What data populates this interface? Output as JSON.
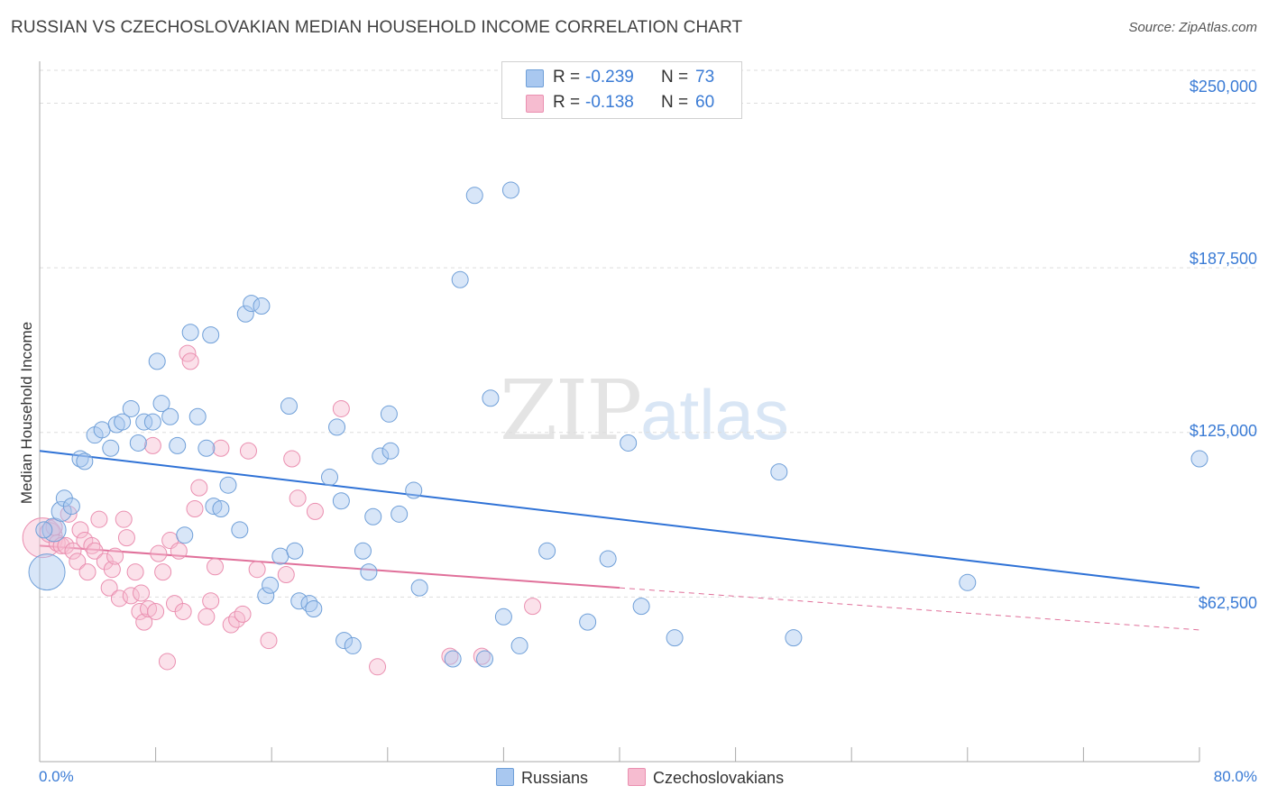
{
  "header": {
    "title": "RUSSIAN VS CZECHOSLOVAKIAN MEDIAN HOUSEHOLD INCOME CORRELATION CHART",
    "source": "Source: ZipAtlas.com"
  },
  "watermark": {
    "zip": "ZIP",
    "atlas": "atlas"
  },
  "legend": {
    "russians": {
      "r_label": "R =",
      "r_value": "-0.239",
      "n_label": "N =",
      "n_value": "73"
    },
    "czechoslovakians": {
      "r_label": "R =",
      "r_value": "-0.138",
      "n_label": "N =",
      "n_value": "60"
    }
  },
  "bottom_legend": {
    "russians": "Russians",
    "czechoslovakians": "Czechoslovakians"
  },
  "axes": {
    "ylabel": "Median Household Income",
    "x_min_label": "0.0%",
    "x_max_label": "80.0%",
    "y_ticks": [
      "$250,000",
      "$187,500",
      "$125,000",
      "$62,500"
    ]
  },
  "colors": {
    "russians_fill": "#a9c8f0",
    "russians_stroke": "#6f9fd8",
    "russians_line": "#2f72d6",
    "czech_fill": "#f6bcd0",
    "czech_stroke": "#ea8fb0",
    "czech_line": "#e0709a",
    "axis_text": "#3a7bd5",
    "grid": "#dddddd"
  },
  "chart_data": {
    "type": "scatter",
    "title": "RUSSIAN VS CZECHOSLOVAKIAN MEDIAN HOUSEHOLD INCOME CORRELATION CHART",
    "xlabel": "",
    "ylabel": "Median Household Income",
    "xlim": [
      0,
      80
    ],
    "ylim": [
      0,
      262500
    ],
    "y_ticks": [
      62500,
      125000,
      187500,
      250000
    ],
    "series": [
      {
        "name": "Russians",
        "r": -0.239,
        "n": 73,
        "trend": {
          "x": [
            0,
            80
          ],
          "y": [
            118000,
            66000
          ]
        },
        "points": [
          [
            0.5,
            72000,
            20
          ],
          [
            1.0,
            88000,
            13
          ],
          [
            1.5,
            95000,
            11
          ],
          [
            1.7,
            100000,
            9
          ],
          [
            2.2,
            97000,
            9
          ],
          [
            2.8,
            115000,
            9
          ],
          [
            3.1,
            114000,
            9
          ],
          [
            3.8,
            124000,
            9
          ],
          [
            4.3,
            126000,
            9
          ],
          [
            4.9,
            119000,
            9
          ],
          [
            5.3,
            128000,
            9
          ],
          [
            5.7,
            129000,
            9
          ],
          [
            6.3,
            134000,
            9
          ],
          [
            6.8,
            121000,
            9
          ],
          [
            7.2,
            129000,
            9
          ],
          [
            7.8,
            129000,
            9
          ],
          [
            8.1,
            152000,
            9
          ],
          [
            8.4,
            136000,
            9
          ],
          [
            9.0,
            131000,
            9
          ],
          [
            9.5,
            120000,
            9
          ],
          [
            10.0,
            86000,
            9
          ],
          [
            10.4,
            163000,
            9
          ],
          [
            10.9,
            131000,
            9
          ],
          [
            11.5,
            119000,
            9
          ],
          [
            11.8,
            162000,
            9
          ],
          [
            12.0,
            97000,
            9
          ],
          [
            12.5,
            96000,
            9
          ],
          [
            13.0,
            105000,
            9
          ],
          [
            13.8,
            88000,
            9
          ],
          [
            14.2,
            170000,
            9
          ],
          [
            14.6,
            174000,
            9
          ],
          [
            15.3,
            173000,
            9
          ],
          [
            15.6,
            63000,
            9
          ],
          [
            15.9,
            67000,
            9
          ],
          [
            16.6,
            78000,
            9
          ],
          [
            17.2,
            135000,
            9
          ],
          [
            17.6,
            80000,
            9
          ],
          [
            17.9,
            61000,
            9
          ],
          [
            18.6,
            60000,
            9
          ],
          [
            18.9,
            58000,
            9
          ],
          [
            20.0,
            108000,
            9
          ],
          [
            20.5,
            127000,
            9
          ],
          [
            20.8,
            99000,
            9
          ],
          [
            21.0,
            46000,
            9
          ],
          [
            21.6,
            44000,
            9
          ],
          [
            22.3,
            80000,
            9
          ],
          [
            22.7,
            72000,
            9
          ],
          [
            23.0,
            93000,
            9
          ],
          [
            23.5,
            116000,
            9
          ],
          [
            24.2,
            118000,
            9
          ],
          [
            24.1,
            132000,
            9
          ],
          [
            24.8,
            94000,
            9
          ],
          [
            25.8,
            103000,
            9
          ],
          [
            26.2,
            66000,
            9
          ],
          [
            28.5,
            39000,
            9
          ],
          [
            29.0,
            183000,
            9
          ],
          [
            30.0,
            215000,
            9
          ],
          [
            30.7,
            39000,
            9
          ],
          [
            31.1,
            138000,
            9
          ],
          [
            32.0,
            55000,
            9
          ],
          [
            32.5,
            217000,
            9
          ],
          [
            33.1,
            44000,
            9
          ],
          [
            35.0,
            80000,
            9
          ],
          [
            37.8,
            53000,
            9
          ],
          [
            39.2,
            77000,
            9
          ],
          [
            40.6,
            121000,
            9
          ],
          [
            41.5,
            59000,
            9
          ],
          [
            43.8,
            47000,
            9
          ],
          [
            51.0,
            110000,
            9
          ],
          [
            52.0,
            47000,
            9
          ],
          [
            64.0,
            68000,
            9
          ],
          [
            80.0,
            115000,
            9
          ],
          [
            0.3,
            88000,
            9
          ]
        ]
      },
      {
        "name": "Czechoslovakians",
        "r": -0.138,
        "n": 60,
        "trend": {
          "x": [
            0,
            40
          ],
          "y": [
            82000,
            66000
          ]
        },
        "trend_dashed": {
          "x": [
            40,
            80
          ],
          "y": [
            66000,
            50000
          ]
        },
        "points": [
          [
            0.2,
            85000,
            22
          ],
          [
            0.7,
            87000,
            11
          ],
          [
            1.0,
            89000,
            9
          ],
          [
            1.2,
            83000,
            9
          ],
          [
            1.5,
            82000,
            9
          ],
          [
            1.8,
            82000,
            9
          ],
          [
            2.0,
            94000,
            9
          ],
          [
            2.3,
            80000,
            9
          ],
          [
            2.6,
            76000,
            9
          ],
          [
            2.8,
            88000,
            9
          ],
          [
            3.1,
            84000,
            9
          ],
          [
            3.3,
            72000,
            9
          ],
          [
            3.6,
            82000,
            9
          ],
          [
            3.8,
            80000,
            9
          ],
          [
            4.1,
            92000,
            9
          ],
          [
            4.5,
            76000,
            9
          ],
          [
            4.8,
            66000,
            9
          ],
          [
            5.0,
            73000,
            9
          ],
          [
            5.2,
            78000,
            9
          ],
          [
            5.5,
            62000,
            9
          ],
          [
            5.8,
            92000,
            9
          ],
          [
            6.0,
            85000,
            9
          ],
          [
            6.3,
            63000,
            9
          ],
          [
            6.6,
            72000,
            9
          ],
          [
            6.9,
            57000,
            9
          ],
          [
            7.0,
            64000,
            9
          ],
          [
            7.2,
            53000,
            9
          ],
          [
            7.5,
            58000,
            9
          ],
          [
            7.8,
            120000,
            9
          ],
          [
            8.0,
            57000,
            9
          ],
          [
            8.2,
            79000,
            9
          ],
          [
            8.5,
            72000,
            9
          ],
          [
            8.8,
            38000,
            9
          ],
          [
            9.0,
            84000,
            9
          ],
          [
            9.3,
            60000,
            9
          ],
          [
            9.6,
            80000,
            9
          ],
          [
            9.9,
            57000,
            9
          ],
          [
            10.2,
            155000,
            9
          ],
          [
            10.4,
            152000,
            9
          ],
          [
            10.7,
            96000,
            9
          ],
          [
            11.0,
            104000,
            9
          ],
          [
            11.5,
            55000,
            9
          ],
          [
            11.8,
            61000,
            9
          ],
          [
            12.1,
            74000,
            9
          ],
          [
            12.5,
            119000,
            9
          ],
          [
            13.2,
            52000,
            9
          ],
          [
            13.6,
            54000,
            9
          ],
          [
            14.0,
            56000,
            9
          ],
          [
            14.4,
            118000,
            9
          ],
          [
            15.0,
            73000,
            9
          ],
          [
            15.8,
            46000,
            9
          ],
          [
            17.0,
            71000,
            9
          ],
          [
            17.4,
            115000,
            9
          ],
          [
            17.8,
            100000,
            9
          ],
          [
            19.0,
            95000,
            9
          ],
          [
            20.8,
            134000,
            9
          ],
          [
            23.3,
            36000,
            9
          ],
          [
            28.3,
            40000,
            9
          ],
          [
            30.5,
            40000,
            9
          ],
          [
            34.0,
            59000,
            9
          ]
        ]
      }
    ]
  }
}
